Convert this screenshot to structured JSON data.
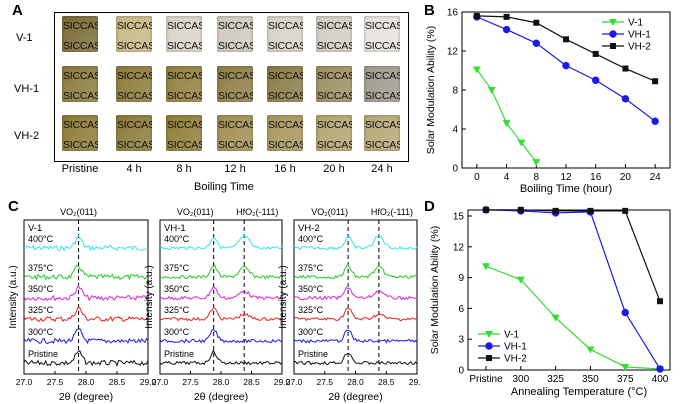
{
  "panels": {
    "a": "A",
    "b": "B",
    "c": "C",
    "d": "D"
  },
  "panel_a": {
    "row_labels": [
      "V-1",
      "VH-1",
      "VH-2"
    ],
    "col_labels": [
      "Pristine",
      "4 h",
      "8 h",
      "12 h",
      "16 h",
      "20 h",
      "24 h"
    ],
    "xlabel": "Boiling Time",
    "sample_text": "SICCAS",
    "tile_colors": [
      [
        "#7a6a33",
        "#c9b884",
        "#d9d3c7",
        "#cfc9bd",
        "#d8d2c8",
        "#d2ccc3",
        "#e6e2dc"
      ],
      [
        "#8a7a3c",
        "#8b7a3a",
        "#927f3e",
        "#8e7d44",
        "#8a7b45",
        "#9c8e60",
        "#a09a8e"
      ],
      [
        "#8c7a36",
        "#8a7a38",
        "#8f7c35",
        "#a08e50",
        "#a7955c",
        "#b3a370",
        "#b5a676"
      ]
    ]
  },
  "chart_data": [
    {
      "id": "B",
      "type": "line",
      "xlabel": "Boiling Time (hour)",
      "ylabel": "Solar Modulation Ability (%)",
      "xlim": [
        -2,
        26
      ],
      "ylim": [
        0,
        16
      ],
      "xticks": [
        0,
        4,
        8,
        12,
        16,
        20,
        24
      ],
      "yticks": [
        0,
        4,
        8,
        12,
        16
      ],
      "legend": "top-right",
      "series": [
        {
          "name": "V-1",
          "color": "#33dd33",
          "marker": "triangle-down",
          "x": [
            0,
            2,
            4,
            6,
            8
          ],
          "y": [
            10.1,
            8.0,
            4.6,
            2.6,
            0.6
          ]
        },
        {
          "name": "VH-1",
          "color": "#1a1aee",
          "marker": "circle",
          "x": [
            0,
            4,
            8,
            12,
            16,
            20,
            24
          ],
          "y": [
            15.5,
            14.2,
            12.8,
            10.5,
            9.0,
            7.1,
            4.8
          ]
        },
        {
          "name": "VH-2",
          "color": "#111111",
          "marker": "square",
          "x": [
            0,
            4,
            8,
            12,
            16,
            20,
            24
          ],
          "y": [
            15.6,
            15.5,
            14.9,
            13.2,
            11.7,
            10.2,
            8.9
          ]
        }
      ]
    },
    {
      "id": "C",
      "type": "line",
      "xlabel": "2θ (degree)",
      "ylabel": "Intensity (a.u.)",
      "xlim": [
        27.0,
        29.0
      ],
      "xticks": [
        "27.0",
        "27.5",
        "28.0",
        "28.5",
        "29.0"
      ],
      "peak_labels": {
        "vo2": "VO₂(011)",
        "hfo2": "HfO₂(-111)"
      },
      "peak_positions": {
        "vo2": 27.88,
        "hfo2": 28.38
      },
      "traces": [
        {
          "label": "400°C",
          "color": "#33e6e6"
        },
        {
          "label": "375°C",
          "color": "#22cc22"
        },
        {
          "label": "350°C",
          "color": "#dd22dd"
        },
        {
          "label": "325°C",
          "color": "#ee2222"
        },
        {
          "label": "300°C",
          "color": "#1a1aee"
        },
        {
          "label": "Pristine",
          "color": "#111111"
        }
      ],
      "subplots": [
        {
          "title": "V-1",
          "hfo2": false
        },
        {
          "title": "VH-1",
          "hfo2": true
        },
        {
          "title": "VH-2",
          "hfo2": true
        }
      ]
    },
    {
      "id": "D",
      "type": "line",
      "xlabel": "Annealing Temperature (°C)",
      "ylabel": "Solar Modulation Ability (%)",
      "categories": [
        "Pristine",
        "300",
        "325",
        "350",
        "375",
        "400"
      ],
      "ylim": [
        0,
        15
      ],
      "yticks": [
        0,
        3,
        6,
        9,
        12,
        15
      ],
      "legend": "bottom-left",
      "series": [
        {
          "name": "V-1",
          "color": "#33dd33",
          "marker": "triangle-down",
          "values": [
            10.1,
            8.8,
            5.1,
            2.0,
            0.3,
            0.1
          ]
        },
        {
          "name": "VH-1",
          "color": "#1a1aee",
          "marker": "circle",
          "values": [
            15.6,
            15.5,
            15.3,
            15.4,
            5.6,
            0.1
          ]
        },
        {
          "name": "VH-2",
          "color": "#111111",
          "marker": "square",
          "values": [
            15.6,
            15.6,
            15.5,
            15.5,
            15.5,
            6.7
          ]
        }
      ]
    }
  ]
}
